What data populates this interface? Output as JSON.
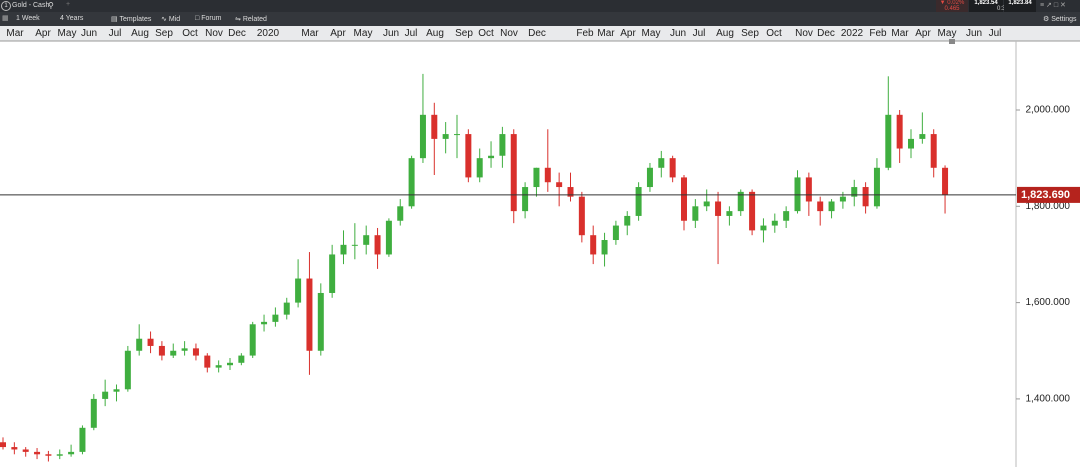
{
  "toolbar": {
    "instrument": "Gold - Cash",
    "change": "0.02%",
    "change_points": "0.465",
    "sell": "1,823.54",
    "buy": "1,823.84",
    "countdown": "0:30",
    "timeframe": "1 Week",
    "period": "4 Years",
    "buttons": [
      "Templates",
      "Mid",
      "Forum",
      "Related"
    ],
    "settings": "Settings"
  },
  "chart_data": {
    "type": "candlestick",
    "x_labels": [
      "Mar",
      "Apr",
      "May",
      "Jun",
      "Jul",
      "Aug",
      "Sep",
      "Oct",
      "Nov",
      "Dec",
      "2020",
      "Mar",
      "Apr",
      "May",
      "Jun",
      "Jul",
      "Aug",
      "Sep",
      "Oct",
      "Nov",
      "Dec",
      "Feb",
      "Mar",
      "Apr",
      "May",
      "Jun",
      "Jul",
      "Aug",
      "Sep",
      "Oct",
      "Nov",
      "Dec",
      "2022",
      "Feb",
      "Mar",
      "Apr",
      "May",
      "Jun",
      "Jul"
    ],
    "ohlc": [
      [
        1310,
        1320,
        1295,
        1300
      ],
      [
        1300,
        1310,
        1285,
        1295
      ],
      [
        1295,
        1300,
        1280,
        1290
      ],
      [
        1290,
        1298,
        1275,
        1285
      ],
      [
        1285,
        1292,
        1270,
        1282
      ],
      [
        1282,
        1295,
        1275,
        1285
      ],
      [
        1285,
        1305,
        1280,
        1290
      ],
      [
        1290,
        1345,
        1285,
        1340
      ],
      [
        1340,
        1410,
        1335,
        1400
      ],
      [
        1400,
        1440,
        1385,
        1415
      ],
      [
        1415,
        1430,
        1395,
        1420
      ],
      [
        1420,
        1510,
        1415,
        1500
      ],
      [
        1500,
        1555,
        1490,
        1525
      ],
      [
        1525,
        1540,
        1495,
        1510
      ],
      [
        1510,
        1520,
        1480,
        1490
      ],
      [
        1490,
        1515,
        1485,
        1500
      ],
      [
        1500,
        1520,
        1490,
        1505
      ],
      [
        1505,
        1515,
        1480,
        1490
      ],
      [
        1490,
        1495,
        1455,
        1465
      ],
      [
        1465,
        1480,
        1455,
        1470
      ],
      [
        1470,
        1485,
        1460,
        1475
      ],
      [
        1475,
        1495,
        1470,
        1490
      ],
      [
        1490,
        1560,
        1485,
        1555
      ],
      [
        1555,
        1575,
        1540,
        1560
      ],
      [
        1560,
        1590,
        1550,
        1575
      ],
      [
        1575,
        1610,
        1565,
        1600
      ],
      [
        1600,
        1690,
        1590,
        1650
      ],
      [
        1650,
        1705,
        1450,
        1500
      ],
      [
        1500,
        1640,
        1490,
        1620
      ],
      [
        1620,
        1720,
        1610,
        1700
      ],
      [
        1700,
        1750,
        1680,
        1720
      ],
      [
        1720,
        1765,
        1690,
        1720
      ],
      [
        1720,
        1760,
        1700,
        1740
      ],
      [
        1740,
        1755,
        1670,
        1700
      ],
      [
        1700,
        1775,
        1695,
        1770
      ],
      [
        1770,
        1815,
        1760,
        1800
      ],
      [
        1800,
        1905,
        1795,
        1900
      ],
      [
        1900,
        2075,
        1890,
        1990
      ],
      [
        1990,
        2015,
        1865,
        1940
      ],
      [
        1940,
        1975,
        1910,
        1950
      ],
      [
        1950,
        1990,
        1900,
        1950
      ],
      [
        1950,
        1960,
        1850,
        1860
      ],
      [
        1860,
        1920,
        1850,
        1900
      ],
      [
        1900,
        1935,
        1880,
        1905
      ],
      [
        1905,
        1965,
        1880,
        1950
      ],
      [
        1950,
        1960,
        1765,
        1790
      ],
      [
        1790,
        1850,
        1775,
        1840
      ],
      [
        1840,
        1880,
        1820,
        1880
      ],
      [
        1880,
        1960,
        1830,
        1850
      ],
      [
        1850,
        1870,
        1800,
        1840
      ],
      [
        1840,
        1870,
        1810,
        1820
      ],
      [
        1820,
        1830,
        1725,
        1740
      ],
      [
        1740,
        1760,
        1680,
        1700
      ],
      [
        1700,
        1745,
        1675,
        1730
      ],
      [
        1730,
        1770,
        1720,
        1760
      ],
      [
        1760,
        1790,
        1740,
        1780
      ],
      [
        1780,
        1850,
        1770,
        1840
      ],
      [
        1840,
        1890,
        1830,
        1880
      ],
      [
        1880,
        1915,
        1860,
        1900
      ],
      [
        1900,
        1905,
        1850,
        1860
      ],
      [
        1860,
        1865,
        1750,
        1770
      ],
      [
        1770,
        1815,
        1755,
        1800
      ],
      [
        1800,
        1835,
        1790,
        1810
      ],
      [
        1810,
        1830,
        1680,
        1780
      ],
      [
        1780,
        1800,
        1760,
        1790
      ],
      [
        1790,
        1835,
        1780,
        1830
      ],
      [
        1830,
        1835,
        1740,
        1750
      ],
      [
        1750,
        1775,
        1725,
        1760
      ],
      [
        1760,
        1785,
        1745,
        1770
      ],
      [
        1770,
        1800,
        1755,
        1790
      ],
      [
        1790,
        1875,
        1785,
        1860
      ],
      [
        1860,
        1870,
        1780,
        1810
      ],
      [
        1810,
        1820,
        1760,
        1790
      ],
      [
        1790,
        1815,
        1775,
        1810
      ],
      [
        1810,
        1830,
        1795,
        1820
      ],
      [
        1820,
        1855,
        1800,
        1840
      ],
      [
        1840,
        1850,
        1785,
        1800
      ],
      [
        1800,
        1900,
        1795,
        1880
      ],
      [
        1880,
        2070,
        1875,
        1990
      ],
      [
        1990,
        2000,
        1890,
        1920
      ],
      [
        1920,
        1960,
        1900,
        1940
      ],
      [
        1940,
        1995,
        1930,
        1950
      ],
      [
        1950,
        1960,
        1860,
        1880
      ],
      [
        1880,
        1885,
        1785,
        1823.69
      ]
    ],
    "ylim": [
      1258.6,
      2143.3
    ],
    "yticks": [
      {
        "value": 1400,
        "label": "1,400.000"
      },
      {
        "value": 1600,
        "label": "1,600.000"
      },
      {
        "value": 1800,
        "label": "1,800.000"
      },
      {
        "value": 2000,
        "label": "2,000.000"
      }
    ],
    "last_price": {
      "value": 1823.69,
      "label": "1,823.690"
    },
    "up_color": "#3fae3f",
    "down_color": "#d9302c",
    "last_price_color": "#b5231d"
  }
}
